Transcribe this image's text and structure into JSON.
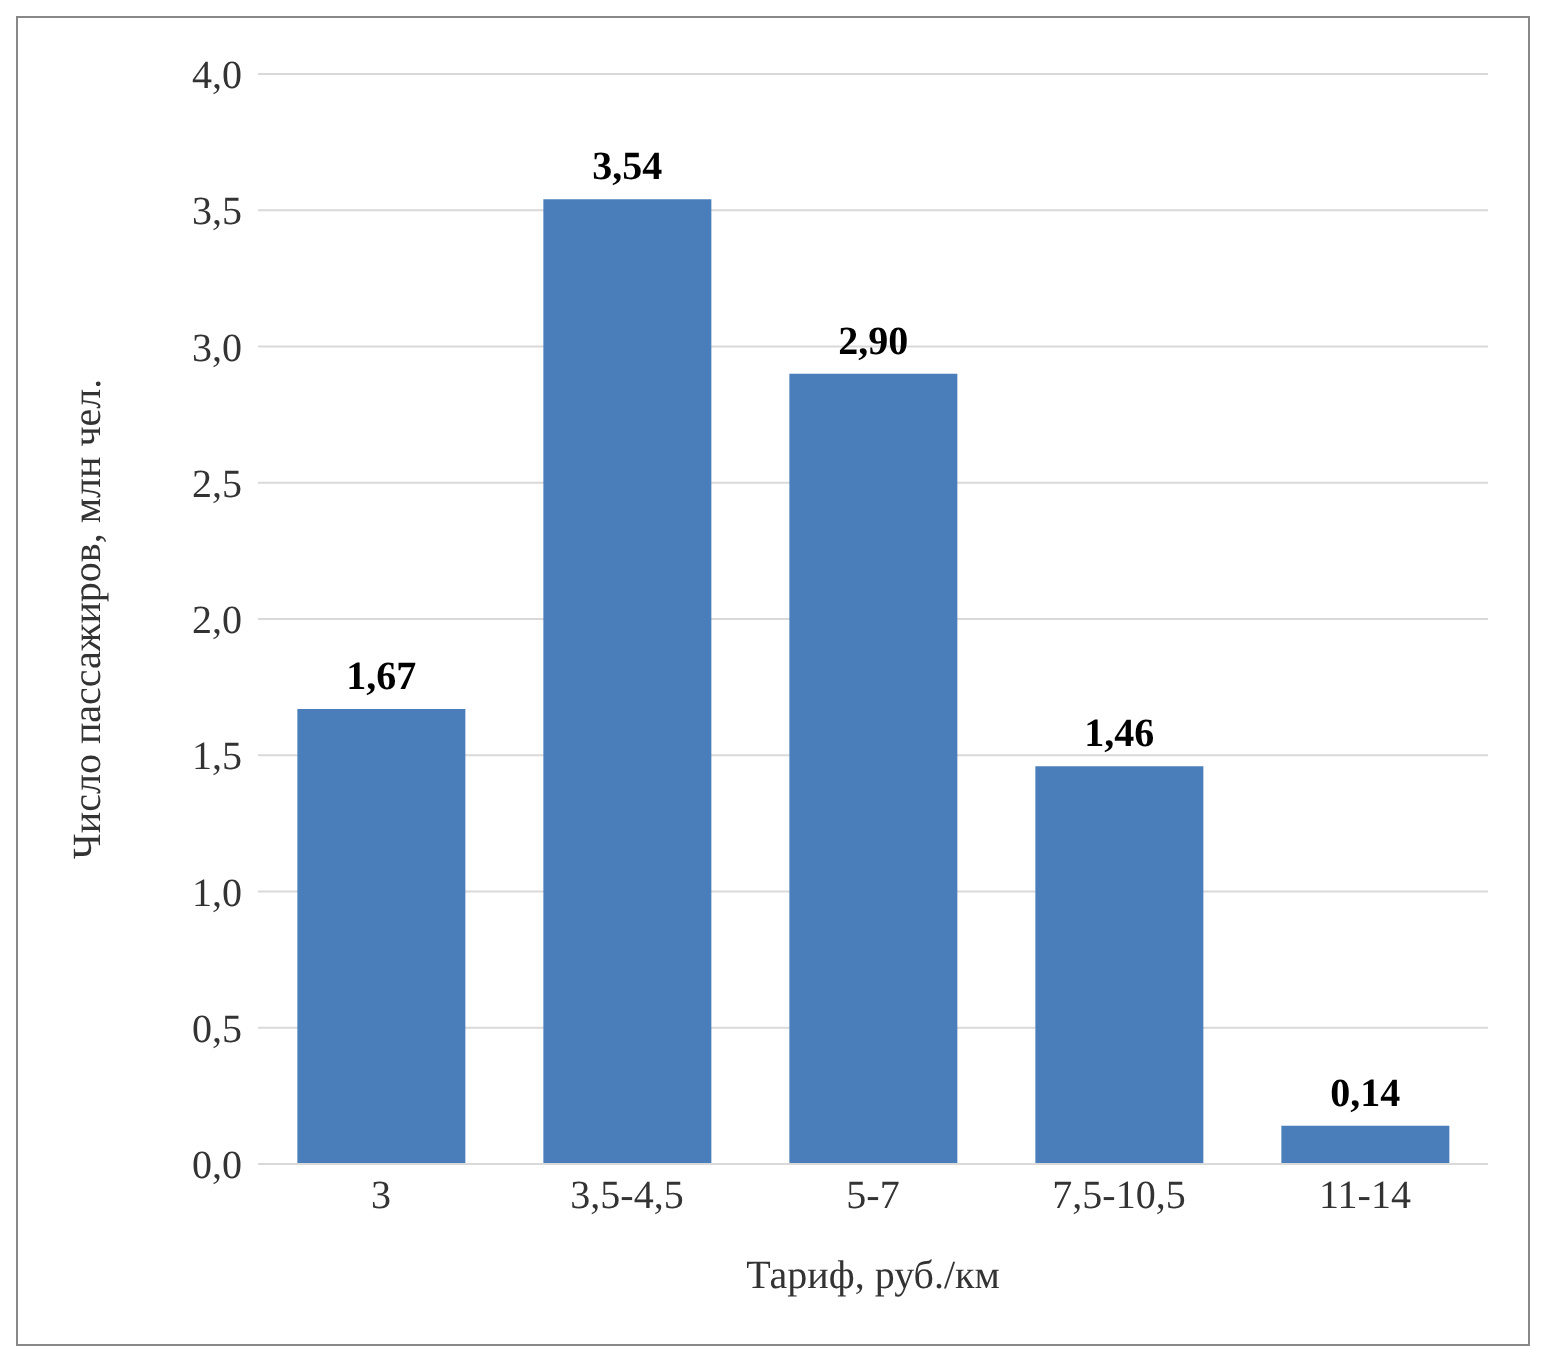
{
  "chart_data": {
    "type": "bar",
    "xlabel": "Тариф, руб./км",
    "ylabel": "Число пассажиров, млн чел.",
    "categories": [
      "3",
      "3,5-4,5",
      "5-7",
      "7,5-10,5",
      "11-14"
    ],
    "values": [
      1.67,
      3.54,
      2.9,
      1.46,
      0.14
    ],
    "value_labels": [
      "1,67",
      "3,54",
      "2,90",
      "1,46",
      "0,14"
    ],
    "color": "#4a7ebb",
    "ylim": [
      0,
      4
    ],
    "yticks": [
      {
        "value": 0,
        "label": "0,0"
      },
      {
        "value": 0.5,
        "label": "0,5"
      },
      {
        "value": 1,
        "label": "1,0"
      },
      {
        "value": 1.5,
        "label": "1,5"
      },
      {
        "value": 2,
        "label": "2,0"
      },
      {
        "value": 2.5,
        "label": "2,5"
      },
      {
        "value": 3,
        "label": "3,0"
      },
      {
        "value": 3.5,
        "label": "3,5"
      },
      {
        "value": 4,
        "label": "4,0"
      }
    ],
    "grid": "y"
  }
}
